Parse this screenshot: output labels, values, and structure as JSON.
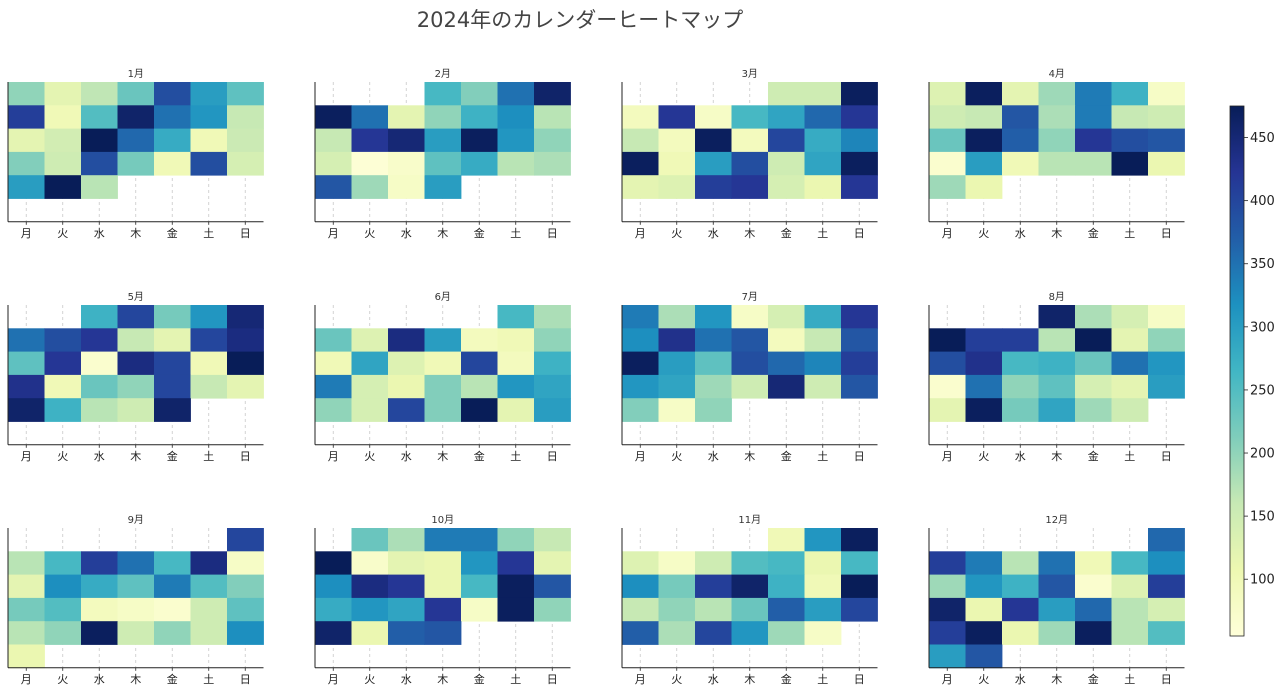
{
  "title": "2024年のカレンダーヒートマップ",
  "chart_data": {
    "type": "heatmap",
    "year": 2024,
    "weekday_labels": [
      "月",
      "火",
      "水",
      "木",
      "金",
      "土",
      "日"
    ],
    "colorbar": {
      "range": [
        55,
        475
      ],
      "ticks": [
        100,
        150,
        200,
        250,
        300,
        350,
        400,
        450
      ],
      "colormap": "YlGnBu"
    },
    "months": [
      {
        "title": "1月",
        "rows": [
          [
            200,
            120,
            165,
            230,
            390,
            300,
            240
          ],
          [
            410,
            100,
            250,
            460,
            350,
            310,
            160
          ],
          [
            120,
            145,
            475,
            360,
            280,
            100,
            155
          ],
          [
            210,
            150,
            390,
            220,
            100,
            390,
            140
          ],
          [
            300,
            475,
            170,
            null,
            null,
            null,
            null
          ]
        ]
      },
      {
        "title": "2月",
        "rows": [
          [
            null,
            null,
            null,
            260,
            210,
            350,
            460
          ],
          [
            470,
            350,
            120,
            200,
            270,
            320,
            170
          ],
          [
            160,
            420,
            450,
            300,
            470,
            310,
            200
          ],
          [
            140,
            60,
            75,
            240,
            280,
            170,
            180
          ],
          [
            380,
            190,
            80,
            300,
            null,
            null,
            null
          ]
        ]
      },
      {
        "title": "3月",
        "rows": [
          [
            null,
            null,
            null,
            null,
            150,
            150,
            470
          ],
          [
            90,
            420,
            80,
            260,
            290,
            360,
            420
          ],
          [
            160,
            90,
            470,
            90,
            400,
            280,
            330
          ],
          [
            470,
            100,
            300,
            390,
            150,
            290,
            470
          ],
          [
            120,
            130,
            410,
            420,
            140,
            110,
            420
          ]
        ]
      },
      {
        "title": "4月",
        "rows": [
          [
            130,
            470,
            120,
            190,
            340,
            270,
            80
          ],
          [
            150,
            160,
            380,
            180,
            340,
            160,
            150
          ],
          [
            230,
            470,
            370,
            200,
            420,
            390,
            380
          ],
          [
            70,
            300,
            100,
            170,
            170,
            475,
            110
          ],
          [
            190,
            110,
            null,
            null,
            null,
            null,
            null
          ]
        ]
      },
      {
        "title": "5月",
        "rows": [
          [
            null,
            null,
            270,
            400,
            220,
            310,
            450
          ],
          [
            350,
            390,
            420,
            160,
            120,
            400,
            440
          ],
          [
            240,
            420,
            70,
            440,
            400,
            100,
            475
          ],
          [
            430,
            100,
            230,
            200,
            400,
            160,
            120
          ],
          [
            460,
            270,
            170,
            150,
            460,
            null,
            null
          ]
        ]
      },
      {
        "title": "6月",
        "rows": [
          [
            null,
            null,
            null,
            null,
            null,
            260,
            180
          ],
          [
            230,
            130,
            440,
            300,
            90,
            100,
            200
          ],
          [
            100,
            290,
            130,
            100,
            400,
            90,
            270
          ],
          [
            340,
            140,
            110,
            210,
            170,
            310,
            290
          ],
          [
            200,
            140,
            400,
            210,
            475,
            120,
            300
          ]
        ]
      },
      {
        "title": "7月",
        "rows": [
          [
            340,
            180,
            310,
            80,
            140,
            280,
            420
          ],
          [
            320,
            430,
            350,
            380,
            90,
            160,
            380
          ],
          [
            470,
            300,
            240,
            390,
            360,
            330,
            410
          ],
          [
            310,
            290,
            190,
            150,
            450,
            150,
            380
          ],
          [
            210,
            80,
            200,
            null,
            null,
            null,
            null
          ]
        ]
      },
      {
        "title": "8月",
        "rows": [
          [
            null,
            null,
            null,
            460,
            180,
            140,
            80
          ],
          [
            475,
            410,
            410,
            170,
            475,
            120,
            200
          ],
          [
            390,
            430,
            260,
            270,
            230,
            350,
            310
          ],
          [
            70,
            350,
            200,
            240,
            140,
            120,
            300
          ],
          [
            120,
            470,
            220,
            290,
            190,
            150,
            null
          ]
        ]
      },
      {
        "title": "9月",
        "rows": [
          [
            null,
            null,
            null,
            null,
            null,
            null,
            400
          ],
          [
            170,
            260,
            410,
            350,
            260,
            440,
            80
          ],
          [
            120,
            320,
            280,
            240,
            340,
            250,
            210
          ],
          [
            220,
            250,
            90,
            80,
            70,
            150,
            240
          ],
          [
            170,
            200,
            470,
            150,
            200,
            150,
            320
          ],
          [
            110,
            null,
            null,
            null,
            null,
            null,
            null
          ]
        ]
      },
      {
        "title": "10月",
        "rows": [
          [
            null,
            230,
            180,
            340,
            340,
            200,
            160
          ],
          [
            475,
            75,
            120,
            110,
            310,
            420,
            120
          ],
          [
            320,
            440,
            420,
            110,
            260,
            470,
            380
          ],
          [
            280,
            310,
            290,
            420,
            80,
            470,
            200
          ],
          [
            460,
            110,
            370,
            380,
            null,
            null,
            null
          ]
        ]
      },
      {
        "title": "11月",
        "rows": [
          [
            null,
            null,
            null,
            null,
            100,
            310,
            470
          ],
          [
            130,
            80,
            150,
            250,
            260,
            110,
            260
          ],
          [
            320,
            220,
            410,
            460,
            270,
            100,
            475
          ],
          [
            160,
            200,
            170,
            230,
            370,
            300,
            400
          ],
          [
            370,
            180,
            400,
            310,
            190,
            80,
            null
          ]
        ]
      },
      {
        "title": "12月",
        "rows": [
          [
            null,
            null,
            null,
            null,
            null,
            null,
            360
          ],
          [
            410,
            340,
            170,
            350,
            100,
            260,
            320
          ],
          [
            190,
            310,
            270,
            380,
            70,
            130,
            410
          ],
          [
            460,
            110,
            420,
            300,
            360,
            170,
            140
          ],
          [
            410,
            470,
            110,
            190,
            470,
            170,
            250
          ],
          [
            300,
            380,
            null,
            null,
            null,
            null,
            null
          ]
        ]
      }
    ]
  }
}
